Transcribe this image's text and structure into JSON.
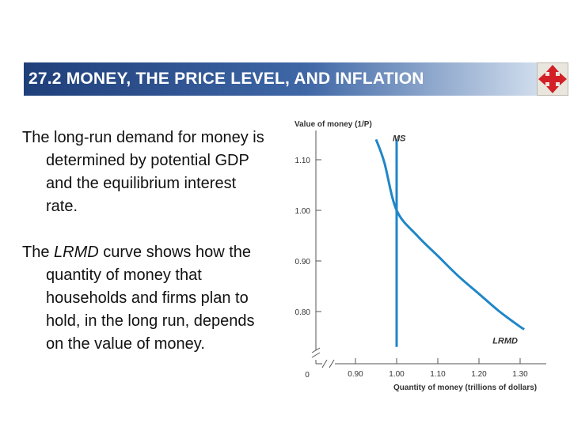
{
  "slide": {
    "title": "27.2  MONEY, THE PRICE LEVEL, AND INFLATION",
    "nav_icon": "four-arrows-navigation-icon",
    "nav_icon_color": "#d32027",
    "paragraph_1": "The long-run demand for money is determined by potential GDP and the equilibrium interest rate.",
    "paragraph_2_prefix": "The ",
    "paragraph_2_italic": "LRMD",
    "paragraph_2_suffix": " curve shows how the quantity of money that households and firms plan to hold, in the long run, depends on the value of money."
  },
  "chart_data": {
    "type": "line",
    "ylabel": "Value of money (1/P)",
    "xlabel": "Quantity of money (trillions of dollars)",
    "x_ticks": [
      "0.90",
      "1.00",
      "1.10",
      "1.20",
      "1.30"
    ],
    "y_ticks": [
      "0.80",
      "0.90",
      "1.00",
      "1.10"
    ],
    "origin_label": "0",
    "xlim": [
      0.82,
      1.34
    ],
    "ylim": [
      0.73,
      1.16
    ],
    "axis_break": true,
    "series": [
      {
        "name": "LRMD",
        "color": "#1f86c8",
        "x": [
          0.95,
          0.97,
          1.0,
          1.05,
          1.1,
          1.15,
          1.2,
          1.25,
          1.3,
          1.31
        ],
        "y": [
          1.14,
          1.095,
          1.0,
          0.95,
          0.91,
          0.87,
          0.835,
          0.8,
          0.77,
          0.765
        ]
      },
      {
        "name": "MS",
        "color": "#1f86c8",
        "x": [
          1.0,
          1.0
        ],
        "y": [
          0.73,
          1.14
        ]
      }
    ]
  }
}
